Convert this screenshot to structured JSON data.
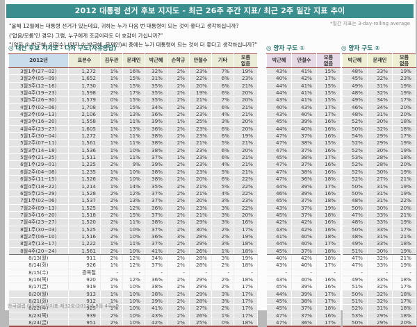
{
  "title": "2012 대통령 선거 후보 지지도 - 최근 26주 주간 지표/ 최근 2주 일간 지표 추이",
  "note": "*일간 지표는 3-day-rolling average",
  "questions": [
    "\"올해 12월에는 대통령 선거가 있는데요, 귀하는 누가 다음 번 대통령이 되는 것이 좋다고 생각하십니까?",
    "('없음/모름'인 경우) 그럼, 누구에게 조금이라도 더 호감이 가십니까?\"",
    "\"(양자 ① 박근혜, 안철수) (양자 ② 박근혜, 문재인)씨 중에는 누가 대통령이 되는 것이 더 좋다고 생각하십니까?\""
  ],
  "colors": {
    "titlebar_teal": "#3a8e8e",
    "accent_red": "#9e4a44",
    "header_blue": "#c9dcec",
    "header_yellow": "#ecedd8",
    "header_pink": "#e6dae6",
    "row_gray": "#e4e4e4"
  },
  "sections": {
    "multi": {
      "title": "◎ 대선 후보 지지도 - 다자 구도(자유응답)",
      "columns": [
        "2012년",
        "표본수",
        "김두관",
        "문재인",
        "박근혜",
        "손학규",
        "안철수",
        "기타",
        "모름\n없음"
      ],
      "rows": [
        [
          "3월1주(27~02)",
          "1,272",
          "1%",
          "16%",
          "32%",
          "2%",
          "23%",
          "7%",
          "19%"
        ],
        [
          "3월2주(05~09)",
          "1,652",
          "1%",
          "15%",
          "31%",
          "2%",
          "22%",
          "6%",
          "23%"
        ],
        [
          "3월3주(12~16)",
          "1,730",
          "1%",
          "15%",
          "35%",
          "2%",
          "20%",
          "6%",
          "21%"
        ],
        [
          "3월4주(19~23)",
          "1,598",
          "2%",
          "17%",
          "35%",
          "2%",
          "19%",
          "6%",
          "20%"
        ],
        [
          "3월5주(26~30)",
          "1,579",
          "0%",
          "15%",
          "35%",
          "2%",
          "21%",
          "7%",
          "20%"
        ],
        [
          "4월1주(02~06)",
          "1,708",
          "1%",
          "15%",
          "34%",
          "2%",
          "23%",
          "6%",
          "21%"
        ],
        [
          "4월2주(09~13)",
          "2,106",
          "1%",
          "13%",
          "36%",
          "2%",
          "23%",
          "4%",
          "21%"
        ],
        [
          "4월3주(16~20)",
          "1,558",
          "1%",
          "11%",
          "39%",
          "1%",
          "25%",
          "3%",
          "20%"
        ],
        [
          "4월4주(23~27)",
          "1,605",
          "1%",
          "13%",
          "36%",
          "2%",
          "23%",
          "6%",
          "20%"
        ],
        [
          "5월1주(30~04)",
          "1,272",
          "1%",
          "11%",
          "38%",
          "2%",
          "23%",
          "6%",
          "19%"
        ],
        [
          "5월2주(07~11)",
          "1,561",
          "1%",
          "11%",
          "38%",
          "2%",
          "21%",
          "5%",
          "21%"
        ],
        [
          "5월3주(14~18)",
          "1,536",
          "1%",
          "10%",
          "38%",
          "2%",
          "23%",
          "6%",
          "20%"
        ],
        [
          "5월4주(21~25)",
          "1,511",
          "1%",
          "11%",
          "37%",
          "1%",
          "23%",
          "6%",
          "21%"
        ],
        [
          "6월1주(29~01)",
          "1,225",
          "2%",
          "9%",
          "39%",
          "2%",
          "23%",
          "4%",
          "21%"
        ],
        [
          "6월2주(04~08)",
          "1,235",
          "1%",
          "10%",
          "38%",
          "2%",
          "23%",
          "5%",
          "21%"
        ],
        [
          "6월3주(11~15)",
          "1,526",
          "2%",
          "10%",
          "38%",
          "2%",
          "20%",
          "6%",
          "22%"
        ],
        [
          "6월4주(18~22)",
          "1,214",
          "1%",
          "14%",
          "35%",
          "2%",
          "21%",
          "5%",
          "22%"
        ],
        [
          "6월5주(25~29)",
          "1,528",
          "2%",
          "12%",
          "37%",
          "2%",
          "21%",
          "4%",
          "22%"
        ],
        [
          "7월1주(02~06)",
          "1,537",
          "2%",
          "13%",
          "37%",
          "2%",
          "20%",
          "3%",
          "23%"
        ],
        [
          "7월2주(09~13)",
          "1,525",
          "3%",
          "12%",
          "36%",
          "2%",
          "23%",
          "3%",
          "22%"
        ],
        [
          "7월3주(16~20)",
          "1,518",
          "2%",
          "15%",
          "37%",
          "2%",
          "21%",
          "3%",
          "20%"
        ],
        [
          "7월4주(23~27)",
          "1,520",
          "2%",
          "11%",
          "38%",
          "2%",
          "29%",
          "3%",
          "16%"
        ],
        [
          "8월1주(30~03)",
          "1,525",
          "2%",
          "10%",
          "37%",
          "2%",
          "30%",
          "2%",
          "17%"
        ],
        [
          "8월2주(06~10)",
          "1,516",
          "2%",
          "10%",
          "36%",
          "3%",
          "28%",
          "2%",
          "19%"
        ],
        [
          "8월3주(13~17)",
          "1,222",
          "1%",
          "11%",
          "37%",
          "2%",
          "29%",
          "3%",
          "18%"
        ],
        [
          "8월4주(20~24)",
          "1,561",
          "2%",
          "10%",
          "41%",
          "2%",
          "26%",
          "1%",
          "18%"
        ],
        [
          "8/13(월)",
          "911",
          "2%",
          "12%",
          "34%",
          "2%",
          "28%",
          "3%",
          "19%"
        ],
        [
          "8/14(화)",
          "926",
          "1%",
          "12%",
          "37%",
          "2%",
          "28%",
          "2%",
          "18%"
        ],
        [
          "8/15(수)",
          "광복절",
          "-",
          "-",
          "-",
          "-",
          "-",
          "-",
          "-"
        ],
        [
          "8/16(목)",
          "920",
          "2%",
          "12%",
          "36%",
          "2%",
          "29%",
          "2%",
          "18%"
        ],
        [
          "8/17(금)",
          "919",
          "1%",
          "10%",
          "38%",
          "2%",
          "29%",
          "2%",
          "17%"
        ],
        [
          "8/20(월)",
          "913",
          "1%",
          "10%",
          "38%",
          "2%",
          "29%",
          "3%",
          "17%"
        ],
        [
          "8/21(화)",
          "912",
          "1%",
          "10%",
          "39%",
          "2%",
          "28%",
          "3%",
          "17%"
        ],
        [
          "8/22(수)",
          "925",
          "1%",
          "10%",
          "41%",
          "2%",
          "27%",
          "2%",
          "17%"
        ],
        [
          "8/23(목)",
          "939",
          "2%",
          "10%",
          "43%",
          "2%",
          "26%",
          "1%",
          "17%"
        ],
        [
          "8/24(금)",
          "951",
          "2%",
          "10%",
          "42%",
          "2%",
          "25%",
          "0%",
          "18%"
        ]
      ]
    },
    "pair1": {
      "title": "◎ 양자 구도 ①",
      "columns": [
        "박근혜",
        "안철수",
        "모름\n없음"
      ],
      "rows": [
        [
          "43%",
          "41%",
          "15%"
        ],
        [
          "40%",
          "42%",
          "17%"
        ],
        [
          "44%",
          "41%",
          "15%"
        ],
        [
          "44%",
          "41%",
          "15%"
        ],
        [
          "43%",
          "41%",
          "15%"
        ],
        [
          "40%",
          "43%",
          "17%"
        ],
        [
          "43%",
          "40%",
          "17%"
        ],
        [
          "45%",
          "39%",
          "16%"
        ],
        [
          "44%",
          "40%",
          "16%"
        ],
        [
          "47%",
          "37%",
          "16%"
        ],
        [
          "47%",
          "38%",
          "15%"
        ],
        [
          "47%",
          "37%",
          "16%"
        ],
        [
          "45%",
          "38%",
          "17%"
        ],
        [
          "47%",
          "37%",
          "16%"
        ],
        [
          "47%",
          "38%",
          "16%"
        ],
        [
          "47%",
          "36%",
          "18%"
        ],
        [
          "44%",
          "39%",
          "17%"
        ],
        [
          "46%",
          "39%",
          "16%"
        ],
        [
          "45%",
          "37%",
          "18%"
        ],
        [
          "43%",
          "37%",
          "19%"
        ],
        [
          "45%",
          "37%",
          "18%"
        ],
        [
          "42%",
          "42%",
          "16%"
        ],
        [
          "43%",
          "42%",
          "16%"
        ],
        [
          "41%",
          "40%",
          "18%"
        ],
        [
          "44%",
          "40%",
          "17%"
        ],
        [
          "45%",
          "37%",
          "18%"
        ],
        [
          "40%",
          "42%",
          "18%"
        ],
        [
          "43%",
          "40%",
          "17%"
        ],
        [
          "-",
          "-",
          "-"
        ],
        [
          "43%",
          "40%",
          "16%"
        ],
        [
          "45%",
          "39%",
          "16%"
        ],
        [
          "44%",
          "39%",
          "17%"
        ],
        [
          "45%",
          "38%",
          "17%"
        ],
        [
          "45%",
          "37%",
          "18%"
        ],
        [
          "47%",
          "37%",
          "16%"
        ],
        [
          "47%",
          "36%",
          "17%"
        ]
      ]
    },
    "pair2": {
      "title": "◎ 양자 구도 ②",
      "columns": [
        "박근혜",
        "문재인",
        "모름\n없음"
      ],
      "rows": [
        [
          "48%",
          "33%",
          "19%"
        ],
        [
          "45%",
          "32%",
          "23%"
        ],
        [
          "49%",
          "31%",
          "19%"
        ],
        [
          "48%",
          "32%",
          "19%"
        ],
        [
          "49%",
          "34%",
          "17%"
        ],
        [
          "46%",
          "34%",
          "20%"
        ],
        [
          "48%",
          "31%",
          "20%"
        ],
        [
          "52%",
          "30%",
          "18%"
        ],
        [
          "50%",
          "32%",
          "18%"
        ],
        [
          "54%",
          "29%",
          "17%"
        ],
        [
          "52%",
          "29%",
          "19%"
        ],
        [
          "52%",
          "30%",
          "19%"
        ],
        [
          "53%",
          "28%",
          "18%"
        ],
        [
          "52%",
          "28%",
          "20%"
        ],
        [
          "52%",
          "30%",
          "19%"
        ],
        [
          "52%",
          "27%",
          "21%"
        ],
        [
          "50%",
          "31%",
          "19%"
        ],
        [
          "50%",
          "31%",
          "19%"
        ],
        [
          "48%",
          "31%",
          "22%"
        ],
        [
          "50%",
          "30%",
          "20%"
        ],
        [
          "47%",
          "33%",
          "21%"
        ],
        [
          "48%",
          "33%",
          "19%"
        ],
        [
          "50%",
          "33%",
          "17%"
        ],
        [
          "48%",
          "31%",
          "21%"
        ],
        [
          "49%",
          "33%",
          "18%"
        ],
        [
          "51%",
          "30%",
          "19%"
        ],
        [
          "47%",
          "32%",
          "21%"
        ],
        [
          "47%",
          "33%",
          "19%"
        ],
        [
          "-",
          "-",
          "-"
        ],
        [
          "49%",
          "33%",
          "18%"
        ],
        [
          "51%",
          "32%",
          "17%"
        ],
        [
          "50%",
          "32%",
          "18%"
        ],
        [
          "51%",
          "32%",
          "17%"
        ],
        [
          "52%",
          "31%",
          "18%"
        ],
        [
          "53%",
          "29%",
          "18%"
        ],
        [
          "50%",
          "29%",
          "20%"
        ]
      ]
    }
  },
  "footer": "한국갤럽 데일리정치지표 제32호(2012년 8월 4주)-9"
}
